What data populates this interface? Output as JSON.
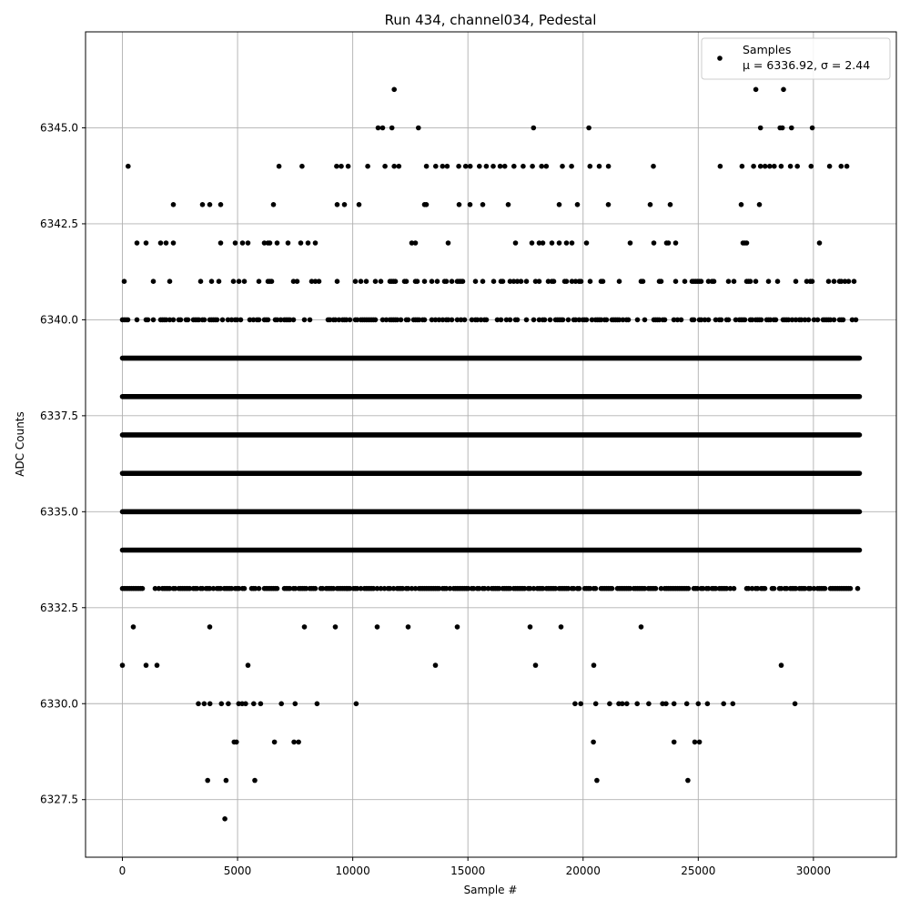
{
  "chart_data": {
    "type": "scatter",
    "title": "Run 434, channel034, Pedestal",
    "xlabel": "Sample #",
    "ylabel": "ADC Counts",
    "xlim": [
      -1600,
      33600
    ],
    "ylim": [
      6326.0,
      6347.5
    ],
    "x_ticks": [
      0,
      5000,
      10000,
      15000,
      20000,
      25000,
      30000
    ],
    "x_tick_labels": [
      "0",
      "5000",
      "10000",
      "15000",
      "20000",
      "25000",
      "30000"
    ],
    "y_ticks": [
      6327.5,
      6330.0,
      6332.5,
      6335.0,
      6337.5,
      6340.0,
      6342.5,
      6345.0
    ],
    "y_tick_labels": [
      "6327.5",
      "6330.0",
      "6332.5",
      "6335.0",
      "6337.5",
      "6340.0",
      "6342.5",
      "6345.0"
    ],
    "grid": true,
    "legend_position": "top-right",
    "marker_color": "#000000",
    "series": [
      {
        "name": "Samples",
        "stats_label": "μ = 6336.92, σ = 2.44",
        "x_range": [
          0,
          31999
        ],
        "dense_levels": [
          6331,
          6332,
          6333,
          6334,
          6335,
          6336,
          6337,
          6338,
          6339,
          6340,
          6341,
          6342,
          6343
        ],
        "sparse_points": [
          [
            4450,
            6327
          ],
          [
            3700,
            6328
          ],
          [
            4500,
            6328
          ],
          [
            5750,
            6328
          ],
          [
            20600,
            6328
          ],
          [
            24550,
            6328
          ],
          [
            4850,
            6329
          ],
          [
            4950,
            6329
          ],
          [
            6600,
            6329
          ],
          [
            7450,
            6329
          ],
          [
            7650,
            6329
          ],
          [
            20450,
            6329
          ],
          [
            23950,
            6329
          ],
          [
            24850,
            6329
          ],
          [
            25050,
            6329
          ],
          [
            3300,
            6330
          ],
          [
            3550,
            6330
          ],
          [
            3800,
            6330
          ],
          [
            4300,
            6330
          ],
          [
            4600,
            6330
          ],
          [
            5050,
            6330
          ],
          [
            5200,
            6330
          ],
          [
            5350,
            6330
          ],
          [
            5700,
            6330
          ],
          [
            6000,
            6330
          ],
          [
            6900,
            6330
          ],
          [
            7500,
            6330
          ],
          [
            8450,
            6330
          ],
          [
            10150,
            6330
          ],
          [
            19650,
            6330
          ],
          [
            19900,
            6330
          ],
          [
            20550,
            6330
          ],
          [
            21150,
            6330
          ],
          [
            21550,
            6330
          ],
          [
            21700,
            6330
          ],
          [
            21900,
            6330
          ],
          [
            22350,
            6330
          ],
          [
            22850,
            6330
          ],
          [
            23450,
            6330
          ],
          [
            23600,
            6330
          ],
          [
            23950,
            6330
          ],
          [
            24500,
            6330
          ],
          [
            25000,
            6330
          ],
          [
            25400,
            6330
          ],
          [
            26100,
            6330
          ],
          [
            26500,
            6330
          ],
          [
            29200,
            6330
          ],
          [
            250,
            6344
          ],
          [
            6800,
            6344
          ],
          [
            7800,
            6344
          ],
          [
            9300,
            6344
          ],
          [
            9500,
            6344
          ],
          [
            9800,
            6344
          ],
          [
            10650,
            6344
          ],
          [
            11400,
            6344
          ],
          [
            11800,
            6344
          ],
          [
            12000,
            6344
          ],
          [
            13200,
            6344
          ],
          [
            13600,
            6344
          ],
          [
            13900,
            6344
          ],
          [
            14100,
            6344
          ],
          [
            14600,
            6344
          ],
          [
            14900,
            6344
          ],
          [
            15100,
            6344
          ],
          [
            15500,
            6344
          ],
          [
            15800,
            6344
          ],
          [
            16100,
            6344
          ],
          [
            16400,
            6344
          ],
          [
            16600,
            6344
          ],
          [
            17000,
            6344
          ],
          [
            17400,
            6344
          ],
          [
            17800,
            6344
          ],
          [
            18200,
            6344
          ],
          [
            18400,
            6344
          ],
          [
            19100,
            6344
          ],
          [
            19500,
            6344
          ],
          [
            20300,
            6344
          ],
          [
            20700,
            6344
          ],
          [
            21100,
            6344
          ],
          [
            23050,
            6344
          ],
          [
            25950,
            6344
          ],
          [
            26900,
            6344
          ],
          [
            27400,
            6344
          ],
          [
            27700,
            6344
          ],
          [
            27900,
            6344
          ],
          [
            28100,
            6344
          ],
          [
            28300,
            6344
          ],
          [
            28600,
            6344
          ],
          [
            29000,
            6344
          ],
          [
            29300,
            6344
          ],
          [
            29900,
            6344
          ],
          [
            30700,
            6344
          ],
          [
            31200,
            6344
          ],
          [
            31450,
            6344
          ],
          [
            11100,
            6345
          ],
          [
            11300,
            6345
          ],
          [
            11700,
            6345
          ],
          [
            12850,
            6345
          ],
          [
            17850,
            6345
          ],
          [
            20250,
            6345
          ],
          [
            27700,
            6345
          ],
          [
            28550,
            6345
          ],
          [
            28650,
            6345
          ],
          [
            29050,
            6345
          ],
          [
            29950,
            6345
          ],
          [
            11800,
            6346
          ],
          [
            27500,
            6346
          ],
          [
            28700,
            6346
          ]
        ]
      }
    ]
  }
}
